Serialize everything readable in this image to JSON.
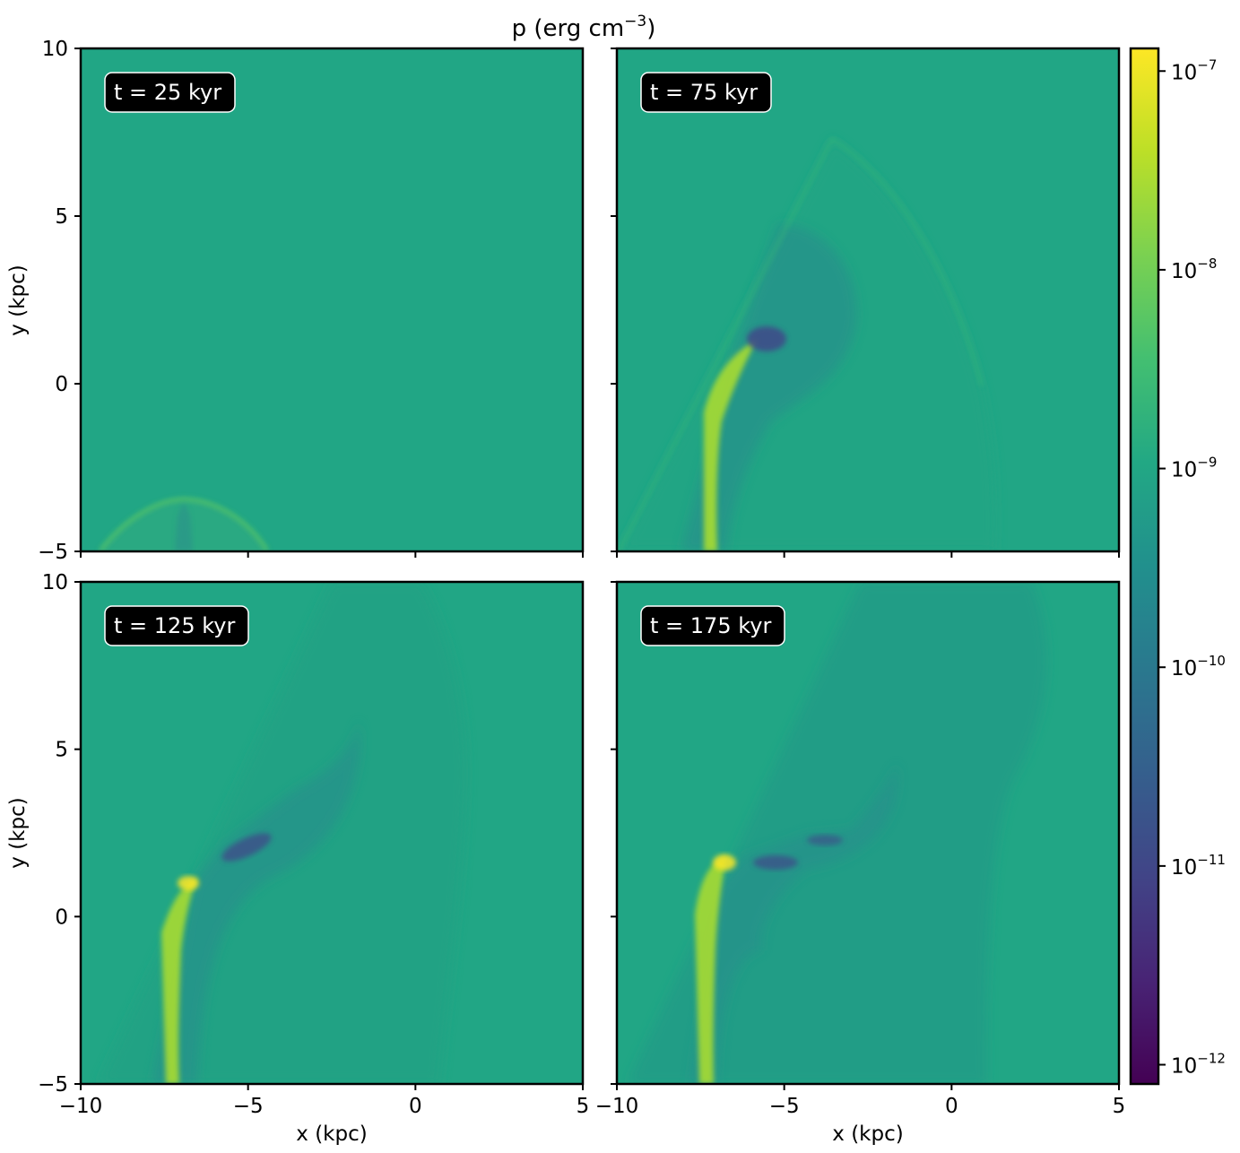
{
  "figure": {
    "title_base": "p (erg cm",
    "title_sup": "−3",
    "title_close": ")"
  },
  "chart_data": {
    "type": "heatmap",
    "quantity": "p (erg cm^-3)",
    "xlabel": "x (kpc)",
    "ylabel": "y (kpc)",
    "xlim": [
      -10,
      5
    ],
    "ylim": [
      -5,
      10
    ],
    "x_ticks": [
      -10,
      -5,
      0,
      5
    ],
    "y_ticks": [
      -5,
      0,
      5,
      10
    ],
    "x_tick_labels": [
      "−10",
      "−5",
      "0",
      "5"
    ],
    "y_tick_labels": [
      "−5",
      "0",
      "5",
      "10"
    ],
    "colorbar": {
      "scale": "log",
      "colormap": "viridis",
      "range": [
        8e-13,
        1.3e-07
      ],
      "ticks": [
        1e-12,
        1e-11,
        1e-10,
        1e-09,
        1e-08,
        1e-07
      ],
      "tick_labels": [
        {
          "base": "10",
          "exp": "−12"
        },
        {
          "base": "10",
          "exp": "−11"
        },
        {
          "base": "10",
          "exp": "−10"
        },
        {
          "base": "10",
          "exp": "−9"
        },
        {
          "base": "10",
          "exp": "−8"
        },
        {
          "base": "10",
          "exp": "−7"
        }
      ]
    },
    "background_value": 1e-09,
    "panels": [
      {
        "label": "t = 25 kyr",
        "time_kyr": 25,
        "features": [
          {
            "kind": "bow-shock",
            "apex_x": -7.0,
            "apex_y": -3.5,
            "peak_value": 1.5e-08
          }
        ]
      },
      {
        "label": "t = 75 kyr",
        "time_kyr": 75,
        "features": [
          {
            "kind": "shock-front",
            "tip_x": -3.5,
            "tip_y": 7.3
          },
          {
            "kind": "high-pressure-ridge",
            "peak_x": -6.2,
            "peak_y": 0.8,
            "peak_value": 4e-08
          },
          {
            "kind": "low-pressure-pocket",
            "x": -5.6,
            "y": 1.2,
            "min_value": 5e-11
          }
        ]
      },
      {
        "label": "t = 125 kyr",
        "time_kyr": 125,
        "features": [
          {
            "kind": "high-pressure-ridge",
            "peak_x": -6.8,
            "peak_y": 1.0,
            "peak_value": 8e-08
          },
          {
            "kind": "low-pressure-pocket",
            "x": -5.0,
            "y": 2.1,
            "min_value": 1e-10
          }
        ]
      },
      {
        "label": "t = 175 kyr",
        "time_kyr": 175,
        "features": [
          {
            "kind": "high-pressure-ridge",
            "peak_x": -6.9,
            "peak_y": 1.6,
            "peak_value": 1e-07
          },
          {
            "kind": "low-pressure-pocket",
            "x": -5.0,
            "y": 1.6,
            "min_value": 1e-10
          }
        ]
      }
    ]
  }
}
